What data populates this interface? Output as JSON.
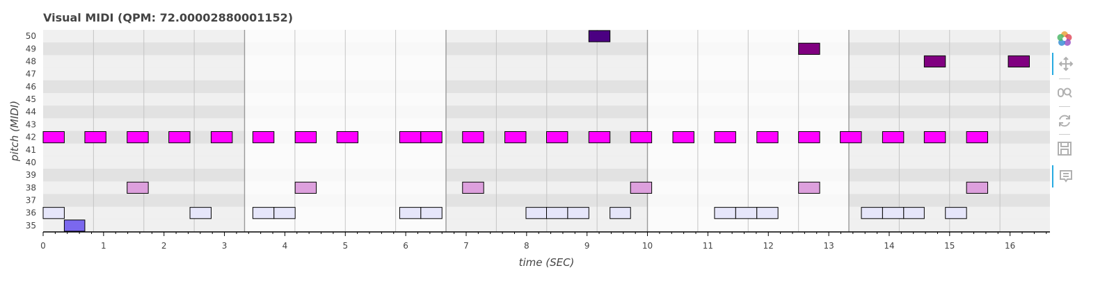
{
  "title": "Visual MIDI (QPM: 72.00002880001152)",
  "chart_data": {
    "type": "piano-roll",
    "title": "Visual MIDI (QPM: 72.00002880001152)",
    "xlabel": "time (SEC)",
    "ylabel": "pitch (MIDI)",
    "xlim": [
      0,
      16.66
    ],
    "ylim": [
      34.5,
      50.5
    ],
    "x_ticks": [
      0,
      1,
      2,
      3,
      4,
      5,
      6,
      7,
      8,
      9,
      10,
      11,
      12,
      13,
      14,
      15,
      16
    ],
    "y_ticks": [
      35,
      36,
      37,
      38,
      39,
      40,
      41,
      42,
      43,
      44,
      45,
      46,
      47,
      48,
      49,
      50
    ],
    "notes": [
      {
        "pitch": 50,
        "start": 9.03,
        "end": 9.38,
        "color": "#4b0082"
      },
      {
        "pitch": 49,
        "start": 12.5,
        "end": 12.85,
        "color": "#800080"
      },
      {
        "pitch": 48,
        "start": 14.58,
        "end": 14.93,
        "color": "#800080"
      },
      {
        "pitch": 48,
        "start": 15.97,
        "end": 16.32,
        "color": "#800080"
      },
      {
        "pitch": 42,
        "start": 0.0,
        "end": 0.35,
        "color": "#ff00ff"
      },
      {
        "pitch": 42,
        "start": 0.69,
        "end": 1.04,
        "color": "#ff00ff"
      },
      {
        "pitch": 42,
        "start": 1.39,
        "end": 1.74,
        "color": "#ff00ff"
      },
      {
        "pitch": 42,
        "start": 2.08,
        "end": 2.43,
        "color": "#ff00ff"
      },
      {
        "pitch": 42,
        "start": 2.78,
        "end": 3.13,
        "color": "#ff00ff"
      },
      {
        "pitch": 42,
        "start": 3.47,
        "end": 3.82,
        "color": "#ff00ff"
      },
      {
        "pitch": 42,
        "start": 4.17,
        "end": 4.52,
        "color": "#ff00ff"
      },
      {
        "pitch": 42,
        "start": 4.86,
        "end": 5.21,
        "color": "#ff00ff"
      },
      {
        "pitch": 42,
        "start": 5.9,
        "end": 6.25,
        "color": "#ff00ff"
      },
      {
        "pitch": 42,
        "start": 6.25,
        "end": 6.6,
        "color": "#ff00ff"
      },
      {
        "pitch": 42,
        "start": 6.94,
        "end": 7.29,
        "color": "#ff00ff"
      },
      {
        "pitch": 42,
        "start": 7.64,
        "end": 7.99,
        "color": "#ff00ff"
      },
      {
        "pitch": 42,
        "start": 8.33,
        "end": 8.68,
        "color": "#ff00ff"
      },
      {
        "pitch": 42,
        "start": 9.03,
        "end": 9.38,
        "color": "#ff00ff"
      },
      {
        "pitch": 42,
        "start": 9.72,
        "end": 10.07,
        "color": "#ff00ff"
      },
      {
        "pitch": 42,
        "start": 10.42,
        "end": 10.77,
        "color": "#ff00ff"
      },
      {
        "pitch": 42,
        "start": 11.11,
        "end": 11.46,
        "color": "#ff00ff"
      },
      {
        "pitch": 42,
        "start": 11.81,
        "end": 12.16,
        "color": "#ff00ff"
      },
      {
        "pitch": 42,
        "start": 12.5,
        "end": 12.85,
        "color": "#ff00ff"
      },
      {
        "pitch": 42,
        "start": 13.19,
        "end": 13.54,
        "color": "#ff00ff"
      },
      {
        "pitch": 42,
        "start": 13.89,
        "end": 14.24,
        "color": "#ff00ff"
      },
      {
        "pitch": 42,
        "start": 14.58,
        "end": 14.93,
        "color": "#ff00ff"
      },
      {
        "pitch": 42,
        "start": 15.28,
        "end": 15.63,
        "color": "#ff00ff"
      },
      {
        "pitch": 38,
        "start": 1.39,
        "end": 1.74,
        "color": "#dda0dd"
      },
      {
        "pitch": 38,
        "start": 4.17,
        "end": 4.52,
        "color": "#dda0dd"
      },
      {
        "pitch": 38,
        "start": 6.94,
        "end": 7.29,
        "color": "#dda0dd"
      },
      {
        "pitch": 38,
        "start": 9.72,
        "end": 10.07,
        "color": "#dda0dd"
      },
      {
        "pitch": 38,
        "start": 12.5,
        "end": 12.85,
        "color": "#dda0dd"
      },
      {
        "pitch": 38,
        "start": 15.28,
        "end": 15.63,
        "color": "#dda0dd"
      },
      {
        "pitch": 36,
        "start": 0.0,
        "end": 0.35,
        "color": "#e6e6fa"
      },
      {
        "pitch": 36,
        "start": 2.43,
        "end": 2.78,
        "color": "#e6e6fa"
      },
      {
        "pitch": 36,
        "start": 3.47,
        "end": 3.82,
        "color": "#e6e6fa"
      },
      {
        "pitch": 36,
        "start": 3.82,
        "end": 4.17,
        "color": "#e6e6fa"
      },
      {
        "pitch": 36,
        "start": 5.9,
        "end": 6.25,
        "color": "#e6e6fa"
      },
      {
        "pitch": 36,
        "start": 6.25,
        "end": 6.6,
        "color": "#e6e6fa"
      },
      {
        "pitch": 36,
        "start": 7.99,
        "end": 8.33,
        "color": "#e6e6fa"
      },
      {
        "pitch": 36,
        "start": 8.33,
        "end": 8.68,
        "color": "#e6e6fa"
      },
      {
        "pitch": 36,
        "start": 8.68,
        "end": 9.03,
        "color": "#e6e6fa"
      },
      {
        "pitch": 36,
        "start": 9.38,
        "end": 9.72,
        "color": "#e6e6fa"
      },
      {
        "pitch": 36,
        "start": 11.11,
        "end": 11.46,
        "color": "#e6e6fa"
      },
      {
        "pitch": 36,
        "start": 11.46,
        "end": 11.81,
        "color": "#e6e6fa"
      },
      {
        "pitch": 36,
        "start": 11.81,
        "end": 12.16,
        "color": "#e6e6fa"
      },
      {
        "pitch": 36,
        "start": 13.54,
        "end": 13.89,
        "color": "#e6e6fa"
      },
      {
        "pitch": 36,
        "start": 13.89,
        "end": 14.24,
        "color": "#e6e6fa"
      },
      {
        "pitch": 36,
        "start": 14.24,
        "end": 14.58,
        "color": "#e6e6fa"
      },
      {
        "pitch": 36,
        "start": 14.93,
        "end": 15.28,
        "color": "#e6e6fa"
      },
      {
        "pitch": 35,
        "start": 0.35,
        "end": 0.69,
        "color": "#7b68ee"
      }
    ],
    "grid": true,
    "beat_length": 0.8333,
    "bar_length": 3.3333
  },
  "toolbar": {
    "tools": [
      {
        "icon": "bokeh-logo-icon",
        "active": false
      },
      {
        "icon": "pan-icon",
        "active": true
      },
      {
        "icon": "wheel-zoom-icon",
        "active": false
      },
      {
        "icon": "reset-icon",
        "active": false
      },
      {
        "icon": "save-icon",
        "active": false
      },
      {
        "icon": "hover-icon",
        "active": true
      }
    ]
  }
}
